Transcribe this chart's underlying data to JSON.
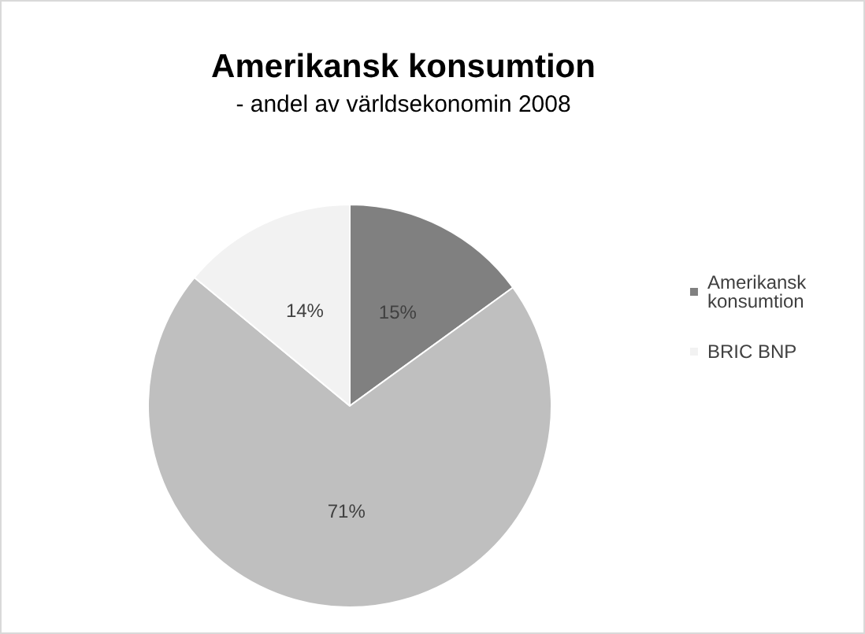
{
  "chart_data": {
    "type": "pie",
    "title": "Amerikansk konsumtion",
    "subtitle": "- andel av världsekonomin 2008",
    "categories": [
      "Amerikansk konsumtion",
      null,
      "BRIC BNP"
    ],
    "values": [
      15,
      71,
      14
    ],
    "colors": [
      "#808080",
      "#bfbfbf",
      "#f2f2f2"
    ],
    "value_labels": [
      "15%",
      "71%",
      "14%"
    ],
    "legend": "right"
  }
}
